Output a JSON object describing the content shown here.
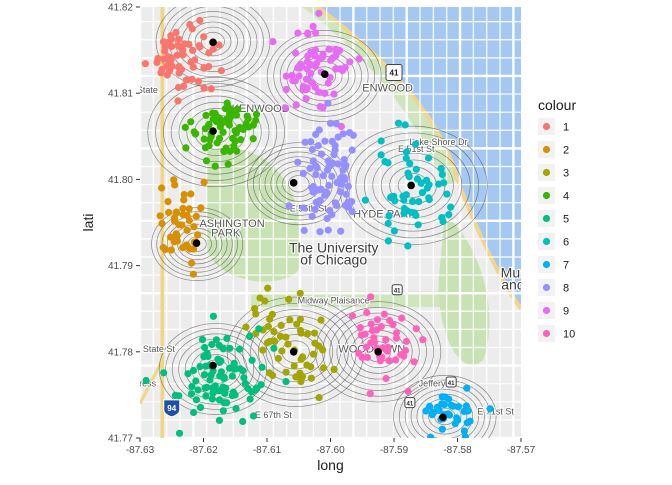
{
  "chart_data": {
    "type": "scatter",
    "xlabel": "long",
    "ylabel": "lati",
    "xlim": [
      -87.63,
      -87.57
    ],
    "ylim": [
      41.77,
      41.82
    ],
    "x_ticks": [
      -87.63,
      -87.62,
      -87.61,
      -87.6,
      -87.59,
      -87.58,
      -87.57
    ],
    "x_tick_labels": [
      "-87.63",
      "-87.62",
      "-87.61",
      "-87.60",
      "-87.59",
      "-87.58",
      "-87.57"
    ],
    "y_ticks": [
      41.77,
      41.78,
      41.79,
      41.8,
      41.81,
      41.82
    ],
    "y_tick_labels": [
      "41.77",
      "41.78",
      "41.79",
      "41.80",
      "41.81",
      "41.82"
    ],
    "legend_title": "colour",
    "legend_position": "right",
    "series": [
      {
        "name": "1",
        "color": "#F8766D",
        "center": [
          -87.623,
          41.814
        ],
        "spread": [
          0.0045,
          0.0035
        ],
        "count": 60
      },
      {
        "name": "2",
        "color": "#D89000",
        "center": [
          -87.623,
          41.7945
        ],
        "spread": [
          0.003,
          0.0035
        ],
        "count": 45
      },
      {
        "name": "3",
        "color": "#A3A500",
        "center": [
          -87.606,
          41.781
        ],
        "spread": [
          0.0045,
          0.004
        ],
        "count": 55
      },
      {
        "name": "4",
        "color": "#39B600",
        "center": [
          -87.617,
          41.806
        ],
        "spread": [
          0.004,
          0.003
        ],
        "count": 70
      },
      {
        "name": "5",
        "color": "#00BF7D",
        "center": [
          -87.617,
          41.777
        ],
        "spread": [
          0.006,
          0.0045
        ],
        "count": 85
      },
      {
        "name": "6",
        "color": "#00BFC4",
        "center": [
          -87.587,
          41.8
        ],
        "spread": [
          0.0045,
          0.0045
        ],
        "count": 55
      },
      {
        "name": "7",
        "color": "#00B0F6",
        "center": [
          -87.582,
          41.773
        ],
        "spread": [
          0.004,
          0.002
        ],
        "count": 35
      },
      {
        "name": "8",
        "color": "#9590FF",
        "center": [
          -87.601,
          41.801
        ],
        "spread": [
          0.004,
          0.0055
        ],
        "count": 80
      },
      {
        "name": "9",
        "color": "#E76BF3",
        "center": [
          -87.602,
          41.813
        ],
        "spread": [
          0.0045,
          0.004
        ],
        "count": 65
      },
      {
        "name": "10",
        "color": "#FF62BC",
        "center": [
          -87.592,
          41.781
        ],
        "spread": [
          0.004,
          0.0035
        ],
        "count": 45
      }
    ],
    "cluster_centers": [
      {
        "cluster": "1",
        "x": -87.6185,
        "y": 41.8159
      },
      {
        "cluster": "2",
        "x": -87.6211,
        "y": 41.7926
      },
      {
        "cluster": "3",
        "x": -87.6058,
        "y": 41.78
      },
      {
        "cluster": "4",
        "x": -87.6185,
        "y": 41.8056
      },
      {
        "cluster": "5",
        "x": -87.6185,
        "y": 41.7784
      },
      {
        "cluster": "6",
        "x": -87.5873,
        "y": 41.7993
      },
      {
        "cluster": "7",
        "x": -87.5823,
        "y": 41.7724
      },
      {
        "cluster": "8",
        "x": -87.6058,
        "y": 41.7996
      },
      {
        "cluster": "9",
        "x": -87.6009,
        "y": 41.8122
      },
      {
        "cluster": "10",
        "x": -87.5925,
        "y": 41.78
      }
    ],
    "density_peaks": [
      {
        "x": -87.6185,
        "y": 41.816,
        "weight": 1.0
      },
      {
        "x": -87.618,
        "y": 41.8055,
        "weight": 1.2
      },
      {
        "x": -87.601,
        "y": 41.812,
        "weight": 1.0
      },
      {
        "x": -87.605,
        "y": 41.7995,
        "weight": 0.9
      },
      {
        "x": -87.587,
        "y": 41.7993,
        "weight": 1.3
      },
      {
        "x": -87.621,
        "y": 41.7925,
        "weight": 0.8
      },
      {
        "x": -87.6055,
        "y": 41.78,
        "weight": 1.2
      },
      {
        "x": -87.5925,
        "y": 41.78,
        "weight": 1.1
      },
      {
        "x": -87.618,
        "y": 41.778,
        "weight": 1.0
      },
      {
        "x": -87.582,
        "y": 41.7725,
        "weight": 0.9
      }
    ]
  },
  "map": {
    "labels": [
      {
        "text": "The University",
        "x": -87.5995,
        "y": 41.7915,
        "size": "large"
      },
      {
        "text": "of Chicago",
        "x": -87.5995,
        "y": 41.7901,
        "size": "large"
      },
      {
        "text": "HYDE PARK",
        "x": -87.5915,
        "y": 41.7956,
        "size": "medium"
      },
      {
        "text": "Museum of Scie",
        "x": -87.5653,
        "y": 41.7886,
        "size": "large"
      },
      {
        "text": "and Industry, Ch",
        "x": -87.5651,
        "y": 41.7872,
        "size": "large"
      },
      {
        "text": "WOODLAWN",
        "x": -87.5935,
        "y": 41.7799,
        "size": "medium"
      },
      {
        "text": "E 55th St",
        "x": -87.6035,
        "y": 41.7963,
        "size": "small"
      },
      {
        "text": "Midway Plaisance",
        "x": -87.5995,
        "y": 41.7856,
        "size": "small"
      },
      {
        "text": "ASHINGTON",
        "x": -87.6155,
        "y": 41.7945,
        "size": "medium"
      },
      {
        "text": "PARK",
        "x": -87.6165,
        "y": 41.7934,
        "size": "medium"
      },
      {
        "text": "ENWOOD",
        "x": -87.591,
        "y": 41.8102,
        "size": "medium"
      },
      {
        "text": "KENWOOD",
        "x": -87.611,
        "y": 41.8078,
        "size": "medium"
      },
      {
        "text": "E 51st St",
        "x": -87.5865,
        "y": 41.8032,
        "size": "small"
      },
      {
        "text": "S State St",
        "x": -87.6277,
        "y": 41.78,
        "size": "small"
      },
      {
        "text": "E 67th St",
        "x": -87.609,
        "y": 41.7723,
        "size": "small"
      },
      {
        "text": "S State",
        "x": -87.6295,
        "y": 41.81,
        "size": "small"
      },
      {
        "text": "Lake Shore Dr",
        "x": -87.583,
        "y": 41.804,
        "size": "small"
      },
      {
        "text": "E 71st St",
        "x": -87.574,
        "y": 41.7727,
        "size": "small"
      },
      {
        "text": "Jeffery",
        "x": -87.584,
        "y": 41.776,
        "size": "small"
      },
      {
        "text": "ress",
        "x": -87.6288,
        "y": 41.776,
        "size": "small"
      }
    ],
    "shields": [
      {
        "text": "41",
        "x": -87.59,
        "y": 41.8124,
        "kind": "us"
      },
      {
        "text": "94",
        "x": -87.625,
        "y": 41.7735,
        "kind": "interstate"
      },
      {
        "text": "41",
        "x": -87.5875,
        "y": 41.7741,
        "kind": "us-small"
      },
      {
        "text": "41",
        "x": -87.5895,
        "y": 41.7872,
        "kind": "us-small"
      },
      {
        "text": "41",
        "x": -87.581,
        "y": 41.7765,
        "kind": "us-small"
      }
    ]
  }
}
